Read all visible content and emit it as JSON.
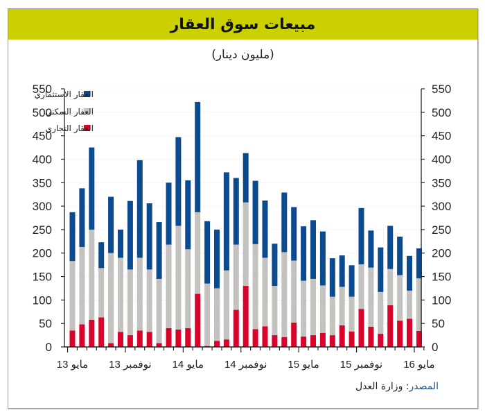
{
  "header": {
    "title": "مبيعات سوق العقار",
    "subtitle": "(مليون دينار)"
  },
  "source": {
    "key": "المصدر",
    "separator": ": ",
    "value": "وزارة العدل"
  },
  "colors": {
    "title_bar": "#cbd000",
    "investment": "#0b4a8e",
    "residential": "#c4c2bf",
    "commercial": "#d9042b"
  },
  "chart_data": {
    "type": "bar",
    "stacked": true,
    "title": "مبيعات سوق العقار",
    "subtitle": "(مليون دينار)",
    "xlabel": "",
    "ylabel": "",
    "ylim": [
      0,
      550
    ],
    "yticks": [
      "0",
      "50",
      "100",
      "150",
      "200",
      "250",
      "300",
      "350",
      "400",
      "450",
      "500",
      "550"
    ],
    "grid": true,
    "legend_position": "top-left",
    "x_tick_labels": [
      {
        "label": "مايو 13",
        "index": 0
      },
      {
        "label": "نوفمبر 13",
        "index": 6
      },
      {
        "label": "مايو 14",
        "index": 12
      },
      {
        "label": "نوفمبر 14",
        "index": 18
      },
      {
        "label": "مايو 15",
        "index": 24
      },
      {
        "label": "نوفمبر 15",
        "index": 30
      },
      {
        "label": "مايو 16",
        "index": 36
      }
    ],
    "series": [
      {
        "name": "العقار التجاري",
        "color": "#d9042b",
        "values": [
          35,
          48,
          58,
          63,
          8,
          32,
          25,
          35,
          32,
          8,
          40,
          37,
          40,
          113,
          2,
          13,
          16,
          79,
          130,
          38,
          44,
          25,
          21,
          52,
          22,
          25,
          30,
          25,
          46,
          33,
          81,
          43,
          28,
          89,
          56,
          60,
          34
        ]
      },
      {
        "name": "العقار السكني",
        "color": "#c4c2bf",
        "values": [
          148,
          165,
          192,
          105,
          192,
          158,
          140,
          155,
          133,
          137,
          178,
          221,
          168,
          174,
          133,
          112,
          147,
          139,
          178,
          181,
          146,
          105,
          181,
          132,
          119,
          120,
          101,
          82,
          82,
          74,
          95,
          126,
          89,
          77,
          97,
          60,
          112
        ]
      },
      {
        "name": "العقار الاستثماري",
        "color": "#0b4a8e",
        "values": [
          104,
          125,
          175,
          55,
          120,
          60,
          146,
          208,
          141,
          121,
          132,
          189,
          147,
          235,
          133,
          125,
          209,
          142,
          105,
          135,
          122,
          90,
          127,
          114,
          116,
          125,
          115,
          82,
          67,
          67,
          120,
          79,
          95,
          92,
          82,
          74,
          64
        ]
      }
    ]
  }
}
